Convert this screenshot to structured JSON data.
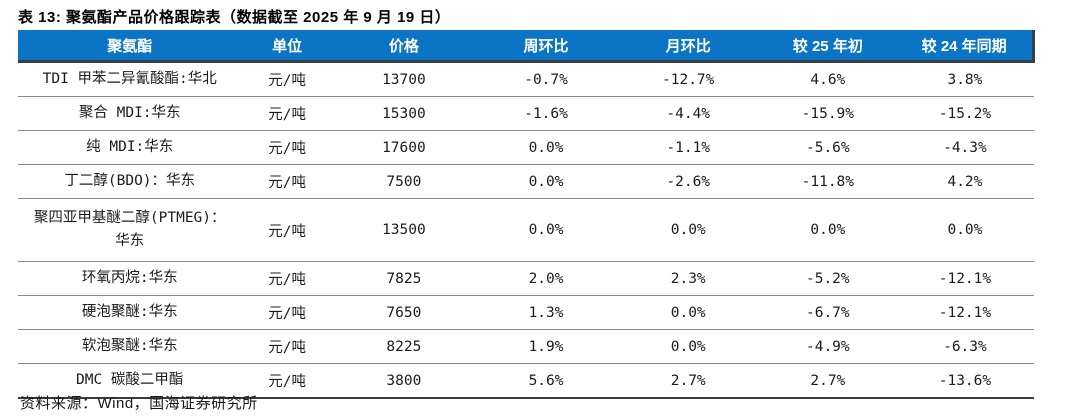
{
  "title": "表 13: 聚氨酯产品价格跟踪表（数据截至 2025 年 9 月 19 日）",
  "source": "资料来源：Wind，国海证券研究所",
  "colors": {
    "header_bg": "#0B74C4",
    "header_text": "#FFFFFF",
    "header_shadow": "#3A3F46",
    "row_divider": "#8C8C8C",
    "bottom_border": "#3A3A3A",
    "body_text": "#1C1C1C"
  },
  "table": {
    "headers": [
      "聚氨酯",
      "单位",
      "价格",
      "周环比",
      "月环比",
      "较 25 年初",
      "较 24 年同期"
    ],
    "rows": [
      {
        "product": "TDI 甲苯二异氰酸酯:华北",
        "unit": "元/吨",
        "price": "13700",
        "wow": "-0.7%",
        "mom": "-12.7%",
        "vs_start_25": "4.6%",
        "vs_yoy_24": "3.8%"
      },
      {
        "product": "聚合 MDI:华东",
        "unit": "元/吨",
        "price": "15300",
        "wow": "-1.6%",
        "mom": "-4.4%",
        "vs_start_25": "-15.9%",
        "vs_yoy_24": "-15.2%"
      },
      {
        "product": "纯 MDI:华东",
        "unit": "元/吨",
        "price": "17600",
        "wow": "0.0%",
        "mom": "-1.1%",
        "vs_start_25": "-5.6%",
        "vs_yoy_24": "-4.3%"
      },
      {
        "product": "丁二醇(BDO)：华东",
        "unit": "元/吨",
        "price": "7500",
        "wow": "0.0%",
        "mom": "-2.6%",
        "vs_start_25": "-11.8%",
        "vs_yoy_24": "4.2%"
      },
      {
        "product": "聚四亚甲基醚二醇(PTMEG)：\n华东",
        "unit": "元/吨",
        "price": "13500",
        "wow": "0.0%",
        "mom": "0.0%",
        "vs_start_25": "0.0%",
        "vs_yoy_24": "0.0%"
      },
      {
        "product": "环氧丙烷:华东",
        "unit": "元/吨",
        "price": "7825",
        "wow": "2.0%",
        "mom": "2.3%",
        "vs_start_25": "-5.2%",
        "vs_yoy_24": "-12.1%"
      },
      {
        "product": "硬泡聚醚:华东",
        "unit": "元/吨",
        "price": "7650",
        "wow": "1.3%",
        "mom": "0.0%",
        "vs_start_25": "-6.7%",
        "vs_yoy_24": "-12.1%"
      },
      {
        "product": "软泡聚醚:华东",
        "unit": "元/吨",
        "price": "8225",
        "wow": "1.9%",
        "mom": "0.0%",
        "vs_start_25": "-4.9%",
        "vs_yoy_24": "-6.3%"
      },
      {
        "product": "DMC 碳酸二甲酯",
        "unit": "元/吨",
        "price": "3800",
        "wow": "5.6%",
        "mom": "2.7%",
        "vs_start_25": "2.7%",
        "vs_yoy_24": "-13.6%"
      }
    ]
  }
}
